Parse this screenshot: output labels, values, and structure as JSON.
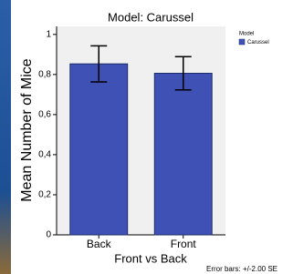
{
  "chart_data": {
    "type": "bar",
    "title": "Model: Carussel",
    "x_label": "Front vs Back",
    "y_label": "Mean Number of Mice",
    "categories": [
      "Back",
      "Front"
    ],
    "series": [
      {
        "name": "Carussel",
        "color": "#3f51b5",
        "values": [
          0.853,
          0.806
        ],
        "errors": [
          0.09,
          0.083
        ]
      }
    ],
    "legend_title": "Model",
    "legend": "top-right",
    "ylim": [
      0,
      1.04
    ],
    "yticks": [
      0,
      {
        "value": 0.2,
        "label": "0,2"
      },
      {
        "value": 0.4,
        "label": "0,4"
      },
      {
        "value": 0.6,
        "label": "0,6"
      },
      {
        "value": 0.8,
        "label": "0,8"
      },
      1
    ],
    "footnote": "Error bars: +/-2.00 SE"
  }
}
